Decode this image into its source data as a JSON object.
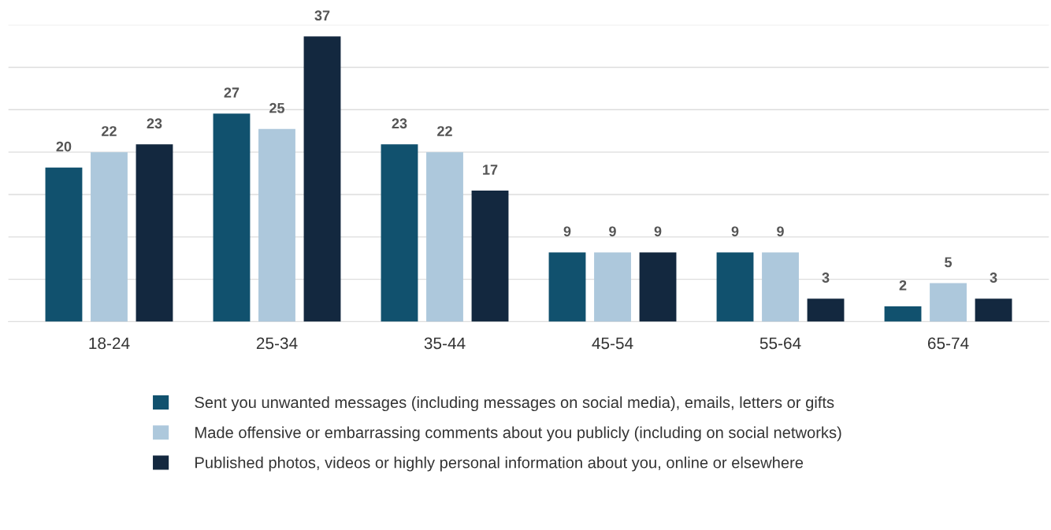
{
  "chart_data": {
    "type": "bar",
    "categories": [
      "18-24",
      "25-34",
      "35-44",
      "45-54",
      "55-64",
      "65-74"
    ],
    "series": [
      {
        "name": "Sent you unwanted messages (including messages on social media), emails, letters or gifts",
        "color": "#11516e",
        "values": [
          20,
          27,
          23,
          9,
          9,
          2
        ]
      },
      {
        "name": "Made offensive or embarrassing comments about you publicly (including on social networks)",
        "color": "#adc8dc",
        "values": [
          22,
          25,
          22,
          9,
          9,
          5
        ]
      },
      {
        "name": "Published photos, videos or highly personal information about you, online or elsewhere",
        "color": "#13283f",
        "values": [
          23,
          37,
          17,
          9,
          3,
          3
        ]
      }
    ],
    "ylim": [
      0,
      38.5
    ],
    "yticks": [
      {
        "value": 0,
        "label": null
      },
      {
        "value": 5.5,
        "label": null
      },
      {
        "value": 11,
        "label": null
      },
      {
        "value": 16.5,
        "label": null
      },
      {
        "value": 22,
        "label": null
      },
      {
        "value": 27.5,
        "label": null
      },
      {
        "value": 33,
        "label": null
      },
      {
        "value": 38.5,
        "label": null
      }
    ],
    "tick_labels": "x",
    "grid": "y",
    "data_labels": true,
    "legend": "bottom"
  }
}
